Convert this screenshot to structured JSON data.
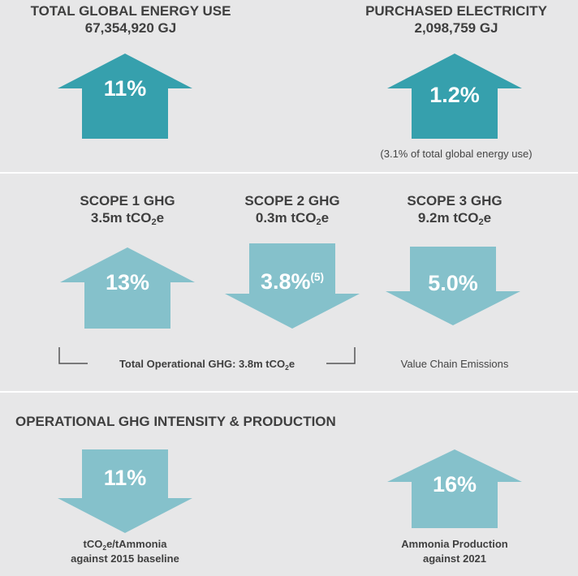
{
  "colors": {
    "dark_teal": "#36a0ad",
    "light_teal": "#85c1cb",
    "background": "#e7e7e8"
  },
  "energy": {
    "total": {
      "title": "TOTAL GLOBAL ENERGY USE",
      "value": "67,354,920 GJ",
      "percent": "11%",
      "direction": "up",
      "icon": "arrow-up-icon"
    },
    "electricity": {
      "title": "PURCHASED ELECTRICITY",
      "value": "2,098,759 GJ",
      "percent": "1.2%",
      "direction": "up",
      "note": "(3.1% of total global energy use)",
      "icon": "arrow-up-icon"
    }
  },
  "scopes": {
    "scope1": {
      "title": "SCOPE 1 GHG",
      "value_prefix": "3.5m tCO",
      "subscript": "2",
      "value_suffix": "e",
      "percent": "13%",
      "direction": "up",
      "icon": "arrow-up-icon"
    },
    "scope2": {
      "title": "SCOPE 2 GHG",
      "value_prefix": "0.3m tCO",
      "subscript": "2",
      "value_suffix": "e",
      "percent": "3.8%",
      "footnote": "(5)",
      "direction": "down",
      "icon": "arrow-down-icon"
    },
    "scope3": {
      "title": "SCOPE 3 GHG",
      "value_prefix": "9.2m tCO",
      "subscript": "2",
      "value_suffix": "e",
      "percent": "5.0%",
      "direction": "down",
      "icon": "arrow-down-icon"
    },
    "operational_prefix": "Total Operational GHG: 3.8m tCO",
    "operational_sub": "2",
    "operational_suffix": "e",
    "value_chain": "Value Chain Emissions"
  },
  "intensity": {
    "heading": "OPERATIONAL GHG INTENSITY & PRODUCTION",
    "left": {
      "percent": "11%",
      "direction": "down",
      "caption_prefix": "tCO",
      "caption_sub": "2",
      "caption_suffix": "e/tAmmonia",
      "caption_line2": "against 2015 baseline",
      "icon": "arrow-down-icon"
    },
    "right": {
      "percent": "16%",
      "direction": "up",
      "caption_line1": "Ammonia Production",
      "caption_line2": "against 2021",
      "icon": "arrow-up-icon"
    }
  }
}
